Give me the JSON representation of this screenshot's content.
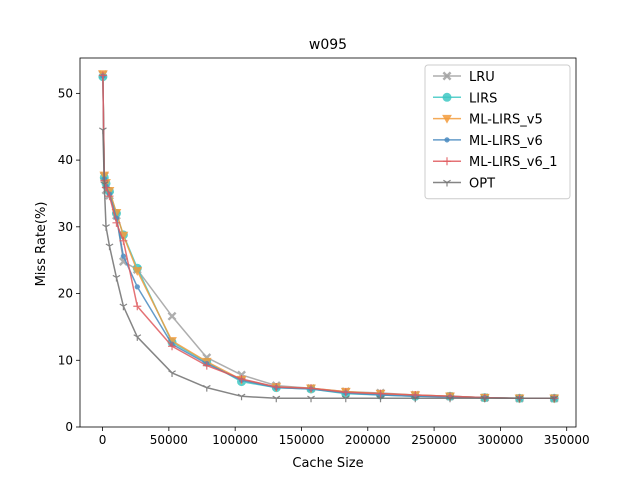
{
  "chart_data": {
    "type": "line",
    "title": "w095",
    "xlabel": "Cache Size",
    "ylabel": "Miss Rate(%)",
    "xlim": [
      -17000,
      357000
    ],
    "ylim": [
      0,
      55.3
    ],
    "xticks": [
      0,
      50000,
      100000,
      150000,
      200000,
      250000,
      300000,
      350000
    ],
    "xtick_labels": [
      "0",
      "50000",
      "100000",
      "150000",
      "200000",
      "250000",
      "300000",
      "350000"
    ],
    "yticks": [
      0,
      10,
      20,
      30,
      40,
      50
    ],
    "ytick_labels": [
      "0",
      "10",
      "20",
      "30",
      "40",
      "50"
    ],
    "grid": false,
    "legend_position": "top-right",
    "series": [
      {
        "name": "LRU",
        "color": "#a0a0a0",
        "marker": "x",
        "x": [
          262,
          1310,
          2620,
          5240,
          10480,
          15720,
          26200,
          52400,
          78600,
          104800,
          131000,
          157200,
          183400,
          209600,
          235800,
          262000,
          288200,
          314400,
          340600
        ],
        "y": [
          52.8,
          37.6,
          35.5,
          34.7,
          31.7,
          24.8,
          23.6,
          16.6,
          10.4,
          7.8,
          6.2,
          5.8,
          5.3,
          5.1,
          4.8,
          4.6,
          4.4,
          4.3,
          4.3
        ]
      },
      {
        "name": "LIRS",
        "color": "#3fc8c4",
        "marker": "o",
        "x": [
          262,
          1310,
          2620,
          5240,
          10480,
          15720,
          26200,
          52400,
          78600,
          104800,
          131000,
          157200,
          183400,
          209600,
          235800,
          262000,
          288200,
          314400,
          340600
        ],
        "y": [
          52.5,
          37.4,
          36.5,
          35.3,
          32.0,
          28.8,
          23.8,
          12.7,
          9.7,
          6.8,
          5.9,
          5.7,
          5.0,
          4.8,
          4.6,
          4.6,
          4.4,
          4.3,
          4.3
        ]
      },
      {
        "name": "ML-LIRS_v5",
        "color": "#f39c3c",
        "marker": "v",
        "x": [
          262,
          1310,
          2620,
          5240,
          10480,
          15720,
          26200,
          52400,
          78600,
          104800,
          131000,
          157200,
          183400,
          209600,
          235800,
          262000,
          288200,
          314400,
          340600
        ],
        "y": [
          52.9,
          37.7,
          36.6,
          35.4,
          32.1,
          28.7,
          23.4,
          12.9,
          9.8,
          7.1,
          6.0,
          5.8,
          5.3,
          5.0,
          4.8,
          4.6,
          4.4,
          4.3,
          4.3
        ]
      },
      {
        "name": "ML-LIRS_v6",
        "color": "#4a8ac0",
        "marker": "dot",
        "x": [
          262,
          1310,
          2620,
          5240,
          10480,
          15720,
          26200,
          52400,
          78600,
          104800,
          131000,
          157200,
          183400,
          209600,
          235800,
          262000,
          288200,
          314400,
          340600
        ],
        "y": [
          52.6,
          37.2,
          36.1,
          34.9,
          31.3,
          25.6,
          21.0,
          12.4,
          9.5,
          7.0,
          5.9,
          5.7,
          5.1,
          4.8,
          4.6,
          4.5,
          4.4,
          4.3,
          4.3
        ]
      },
      {
        "name": "ML-LIRS_v6_1",
        "color": "#e05a5e",
        "marker": "+",
        "x": [
          262,
          1310,
          2620,
          5240,
          10480,
          15720,
          26200,
          52400,
          78600,
          104800,
          131000,
          157200,
          183400,
          209600,
          235800,
          262000,
          288200,
          314400,
          340600
        ],
        "y": [
          52.7,
          36.9,
          35.9,
          34.6,
          30.6,
          27.9,
          18.1,
          12.1,
          9.2,
          7.2,
          6.0,
          5.8,
          5.2,
          5.0,
          4.8,
          4.6,
          4.4,
          4.3,
          4.3
        ]
      },
      {
        "name": "OPT",
        "color": "#707070",
        "marker": "tri_down",
        "x": [
          262,
          1310,
          2620,
          5240,
          10480,
          15720,
          26200,
          52400,
          78600,
          104800,
          131000,
          157200,
          183400,
          209600,
          235800,
          262000,
          288200,
          314400,
          340600
        ],
        "y": [
          44.5,
          36.4,
          30.0,
          27.1,
          22.4,
          18.1,
          13.5,
          8.1,
          5.9,
          4.6,
          4.3,
          4.3,
          4.3,
          4.3,
          4.3,
          4.3,
          4.3,
          4.3,
          4.3
        ]
      }
    ]
  }
}
